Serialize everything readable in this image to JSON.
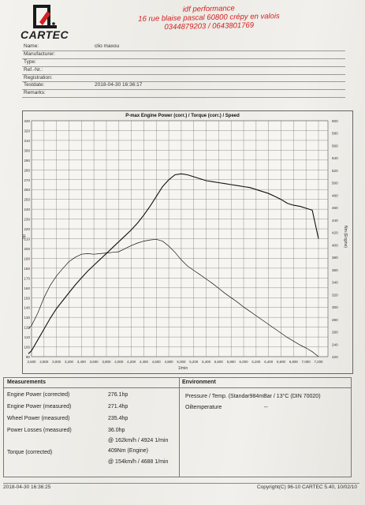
{
  "header": {
    "brand": "CARTEC",
    "address": [
      "idf performance",
      "16 rue blaise pascal 60800 crépy en valois",
      "0344879203 / 0643801769"
    ]
  },
  "info": [
    {
      "label": "Name:",
      "value": "clio maxou"
    },
    {
      "label": "Manufacturer:",
      "value": ""
    },
    {
      "label": "Type:",
      "value": ""
    },
    {
      "label": "Ref.-Nr.:",
      "value": ""
    },
    {
      "label": "Registration:",
      "value": ""
    },
    {
      "label": "Testdate:",
      "value": "2018-04-30 16:36:17"
    },
    {
      "label": "Remarks:",
      "value": ""
    }
  ],
  "chart_data": {
    "type": "line",
    "title": "P-max Engine Power (corr.) / Torque (corr.) / Speed",
    "xlabel": "1/min",
    "ylabel_left": "hp",
    "ylabel_right": "Nm (Engine)",
    "xlim": [
      2600,
      7200
    ],
    "x_ticks": [
      "2,600",
      "2,800",
      "3,000",
      "3,200",
      "3,400",
      "3,600",
      "3,800",
      "4,000",
      "4,200",
      "4,400",
      "4,600",
      "4,800",
      "5,000",
      "5,200",
      "5,400",
      "5,600",
      "5,800",
      "6,000",
      "6,200",
      "6,400",
      "6,600",
      "6,800",
      "7,000",
      "7,200"
    ],
    "y_left": {
      "min": 90,
      "max": 330,
      "step": 10
    },
    "y_right": {
      "min": 220,
      "max": 600,
      "step": 20
    },
    "series": [
      {
        "name": "Engine Power (corr.)",
        "axis": "left",
        "x": [
          2550,
          2600,
          2700,
          2800,
          2900,
          3000,
          3100,
          3200,
          3300,
          3400,
          3500,
          3600,
          3700,
          3800,
          3900,
          4000,
          4100,
          4200,
          4300,
          4400,
          4500,
          4600,
          4700,
          4800,
          4900,
          5000,
          5100,
          5200,
          5300,
          5400,
          5500,
          5600,
          5700,
          5800,
          5900,
          6000,
          6100,
          6200,
          6300,
          6400,
          6500,
          6600,
          6700,
          6800,
          6900,
          7000,
          7100,
          7200
        ],
        "y": [
          93,
          96,
          107,
          118,
          129,
          139,
          147,
          155,
          163,
          170,
          177,
          183,
          189,
          195,
          201,
          207,
          213,
          219,
          226,
          234,
          243,
          253,
          263,
          270,
          275,
          276,
          275,
          273,
          271,
          269,
          268,
          267,
          266,
          265,
          264,
          263,
          262,
          260,
          258,
          256,
          253,
          250,
          246,
          244,
          243,
          241,
          239,
          210
        ]
      },
      {
        "name": "Torque (corr.)",
        "axis": "right",
        "x": [
          2550,
          2600,
          2700,
          2800,
          2900,
          3000,
          3100,
          3200,
          3300,
          3400,
          3500,
          3600,
          3700,
          3800,
          3900,
          4000,
          4100,
          4200,
          4300,
          4400,
          4500,
          4600,
          4700,
          4800,
          4900,
          5000,
          5100,
          5200,
          5300,
          5400,
          5500,
          5600,
          5700,
          5800,
          5900,
          6000,
          6100,
          6200,
          6300,
          6400,
          6500,
          6600,
          6700,
          6800,
          6900,
          7000,
          7100,
          7200
        ],
        "y": [
          265,
          270,
          290,
          315,
          335,
          350,
          362,
          373,
          380,
          385,
          386,
          385,
          386,
          387,
          388,
          389,
          394,
          399,
          403,
          406,
          408,
          409,
          406,
          398,
          388,
          376,
          366,
          359,
          352,
          345,
          338,
          330,
          322,
          315,
          308,
          300,
          293,
          286,
          279,
          272,
          265,
          258,
          251,
          245,
          239,
          234,
          228,
          220
        ]
      }
    ]
  },
  "measurements": {
    "title": "Measurements",
    "rows": [
      {
        "label": "Engine Power (corrected)",
        "value": "276.1hp"
      },
      {
        "label": "Engine Power (measured)",
        "value": "271.4hp"
      },
      {
        "label": "Wheel Power (measured)",
        "value": "235.4hp"
      },
      {
        "label": "Power Losses (measured)",
        "value": "36.0hp"
      },
      {
        "label": "",
        "value": "@ 162km/h / 4924 1/min"
      },
      {
        "label": "Torque (corrected)",
        "value": "409Nm (Engine)"
      },
      {
        "label": "",
        "value": "@ 154km/h / 4688 1/min"
      }
    ]
  },
  "environment": {
    "title": "Environment",
    "rows": [
      {
        "label": "Pressure / Temp. (Standar984mBar / 13°C  (DIN 70020)",
        "value": ""
      },
      {
        "label": "Oiltemperature",
        "value": "--"
      }
    ]
  },
  "footer": {
    "left": "2018-04-30 16:36:25",
    "right": "Copyright(C) 96-10 CARTEC 5.40, 10/02/10"
  }
}
